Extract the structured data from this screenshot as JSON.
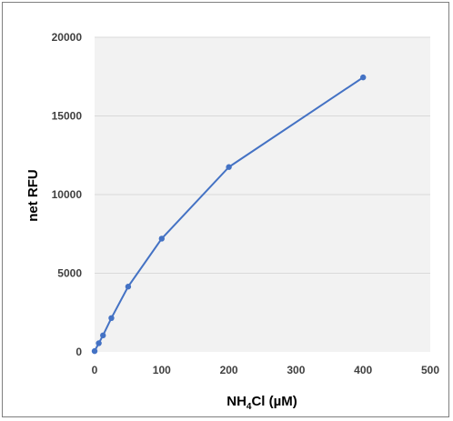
{
  "chart_data": {
    "type": "line",
    "title": "",
    "xlabel": "NH4Cl (µM)",
    "xlabel_parts": {
      "pre": "NH",
      "sub": "4",
      "post": "Cl (µM)"
    },
    "ylabel": "net RFU",
    "xlim": [
      0,
      500
    ],
    "ylim": [
      0,
      20000
    ],
    "x_ticks": [
      0,
      100,
      200,
      300,
      400,
      500
    ],
    "y_ticks": [
      0,
      5000,
      10000,
      15000,
      20000
    ],
    "grid": "horizontal",
    "legend": "none",
    "series": [
      {
        "x": [
          0,
          6.25,
          12.5,
          25,
          50,
          100,
          200,
          400
        ],
        "y": [
          50,
          550,
          1050,
          2150,
          4150,
          7200,
          11750,
          17450
        ]
      }
    ],
    "colors": {
      "series": "#4472c4",
      "plot_bg": "#f2f2f2",
      "grid": "#d9d9d9"
    }
  }
}
